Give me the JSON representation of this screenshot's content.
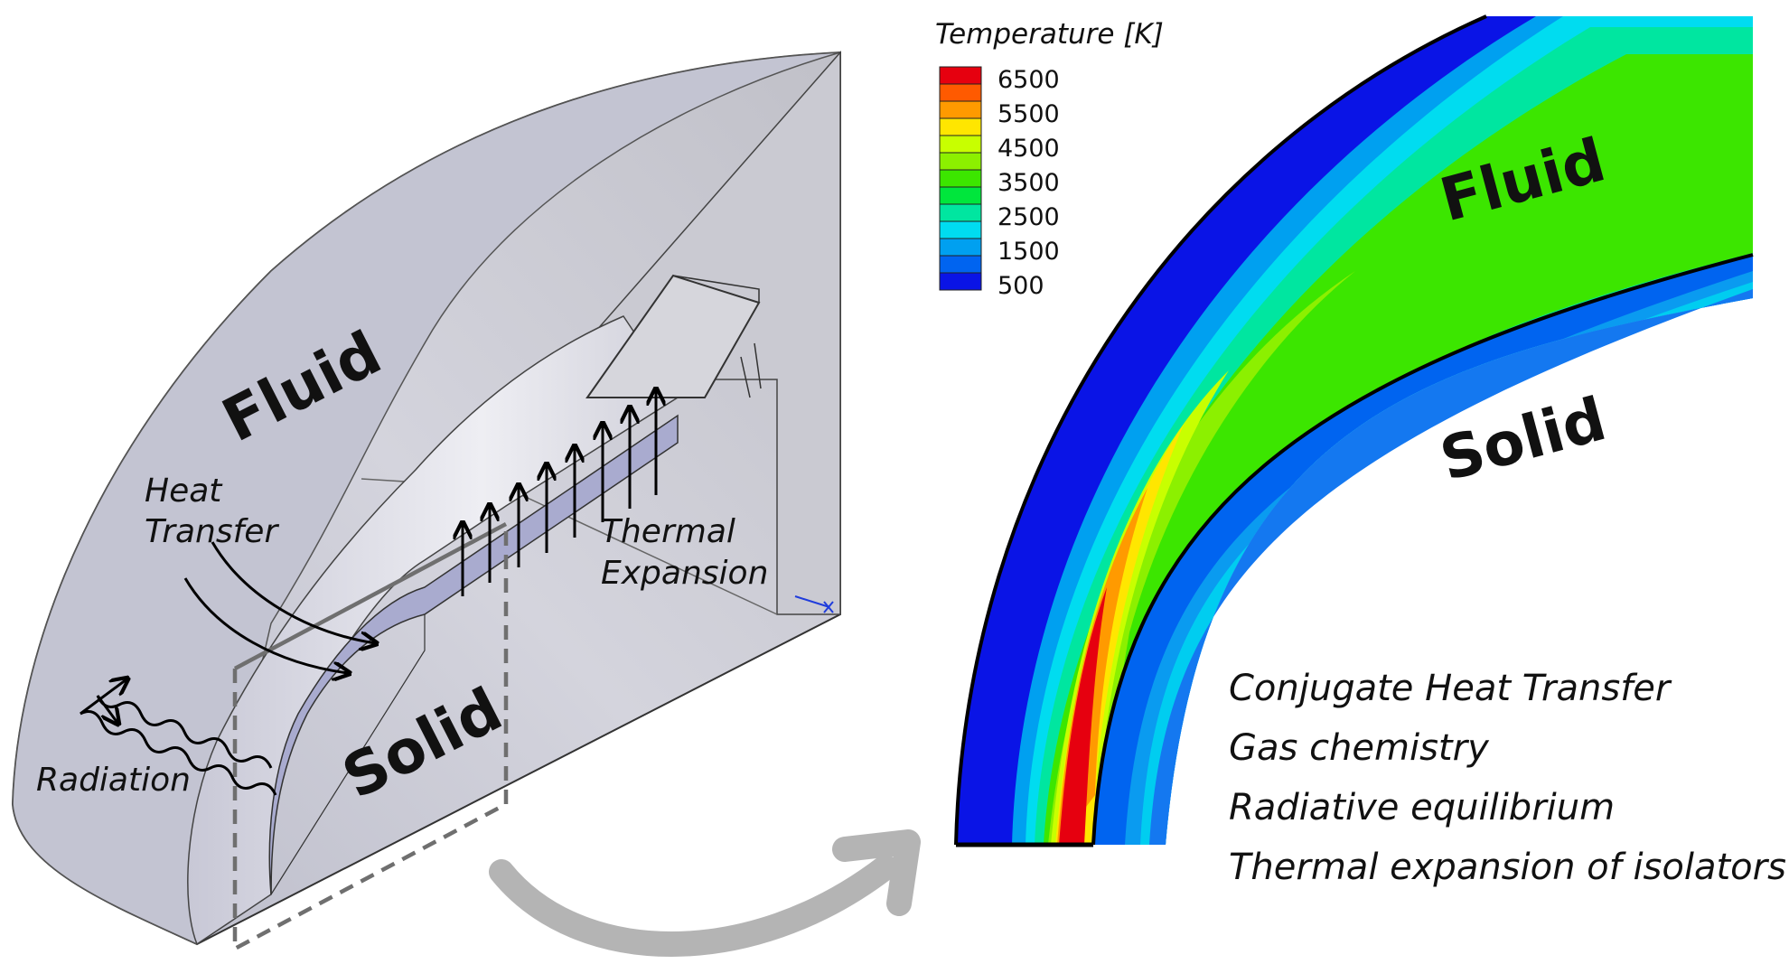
{
  "left_view": {
    "fluid_label": "Fluid",
    "solid_label": "Solid",
    "heat_transfer_line1": "Heat",
    "heat_transfer_line2": "Transfer",
    "thermal_line1": "Thermal",
    "thermal_line2": "Expansion",
    "radiation_label": "Radiation"
  },
  "right_view": {
    "fluid_label": "Fluid",
    "solid_label": "Solid"
  },
  "legend": {
    "title": "Temperature [K]",
    "ticks": [
      "6500",
      "5500",
      "4500",
      "3500",
      "2500",
      "1500",
      "500"
    ],
    "colors": [
      "#e6000f",
      "#ff5a00",
      "#ff9a00",
      "#ffe600",
      "#c8ff00",
      "#8cf000",
      "#3ce600",
      "#00e63c",
      "#00e6a0",
      "#00dcf0",
      "#00a0f0",
      "#0064f0",
      "#0a14e6"
    ]
  },
  "features": [
    "Conjugate Heat Transfer",
    "Gas chemistry",
    "Radiative equilibrium",
    "Thermal expansion of isolators"
  ],
  "colors": {
    "cold": "#0a14e6",
    "solid_fill": "#aeb0cf",
    "geometry": "#c6c6ce",
    "arrow_gray": "#b4b4b4"
  }
}
